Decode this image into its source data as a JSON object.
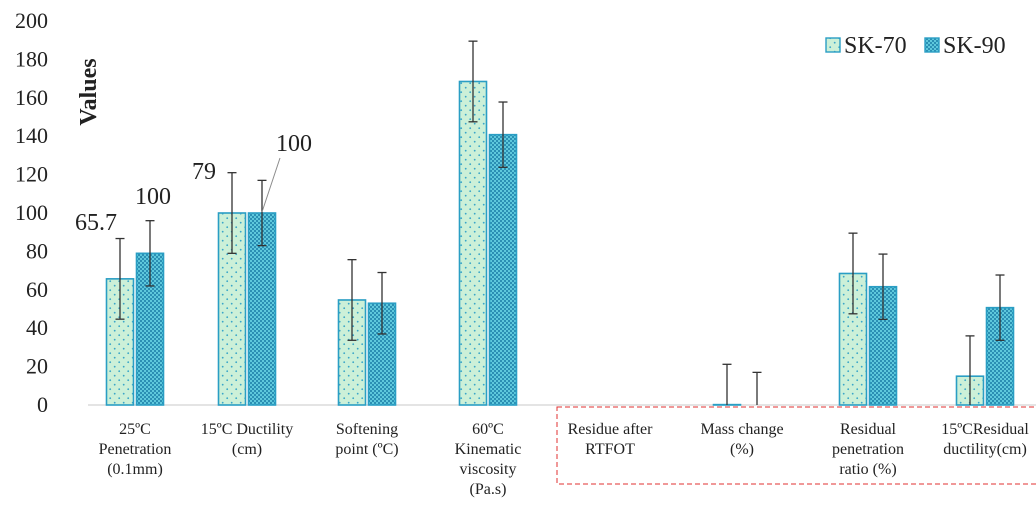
{
  "chart_data": {
    "type": "bar",
    "ylabel": "Values",
    "ylim": [
      0,
      200
    ],
    "yticks": [
      "0",
      "20",
      "40",
      "60",
      "80",
      "100",
      "120",
      "140",
      "160",
      "180",
      "200"
    ],
    "categories": [
      [
        "25ºC",
        "Penetration",
        "(0.1mm)"
      ],
      [
        "15ºC Ductility",
        "(cm)"
      ],
      [
        "Softening",
        "point (ºC)"
      ],
      [
        "60ºC",
        "Kinematic",
        "viscosity",
        "(Pa.s)"
      ],
      [
        "Residue after",
        "RTFOT"
      ],
      [
        "Mass change",
        "(%)"
      ],
      [
        "Residual",
        "penetration",
        "ratio (%)"
      ],
      [
        "15ºCResidual",
        "ductility(cm)"
      ]
    ],
    "series": [
      {
        "name": "SK-70",
        "color": "#ccf0d8",
        "values": [
          65.7,
          100,
          54.7,
          168.5,
          null,
          0.1985,
          68.5,
          15
        ],
        "error": [
          21,
          21,
          21,
          21,
          null,
          21,
          21,
          21
        ],
        "labels": [
          "65.7",
          "100",
          "54.7",
          "168.5",
          "",
          "0.1985",
          "68.5",
          "15"
        ]
      },
      {
        "name": "SK-90",
        "color": "#5ec8dc",
        "values": [
          79,
          100,
          53,
          140.8,
          null,
          0,
          61.6,
          50.7
        ],
        "error": [
          17,
          17,
          16,
          17,
          null,
          17,
          17,
          17
        ],
        "labels": [
          "79",
          "100",
          "53",
          "140.8",
          "",
          "",
          "61.6",
          "50.7"
        ]
      }
    ],
    "legend": {
      "position": "top-right"
    },
    "bar_border_color": "#2a9ec4",
    "highlight_box_color": "#e03030",
    "grid": false
  }
}
